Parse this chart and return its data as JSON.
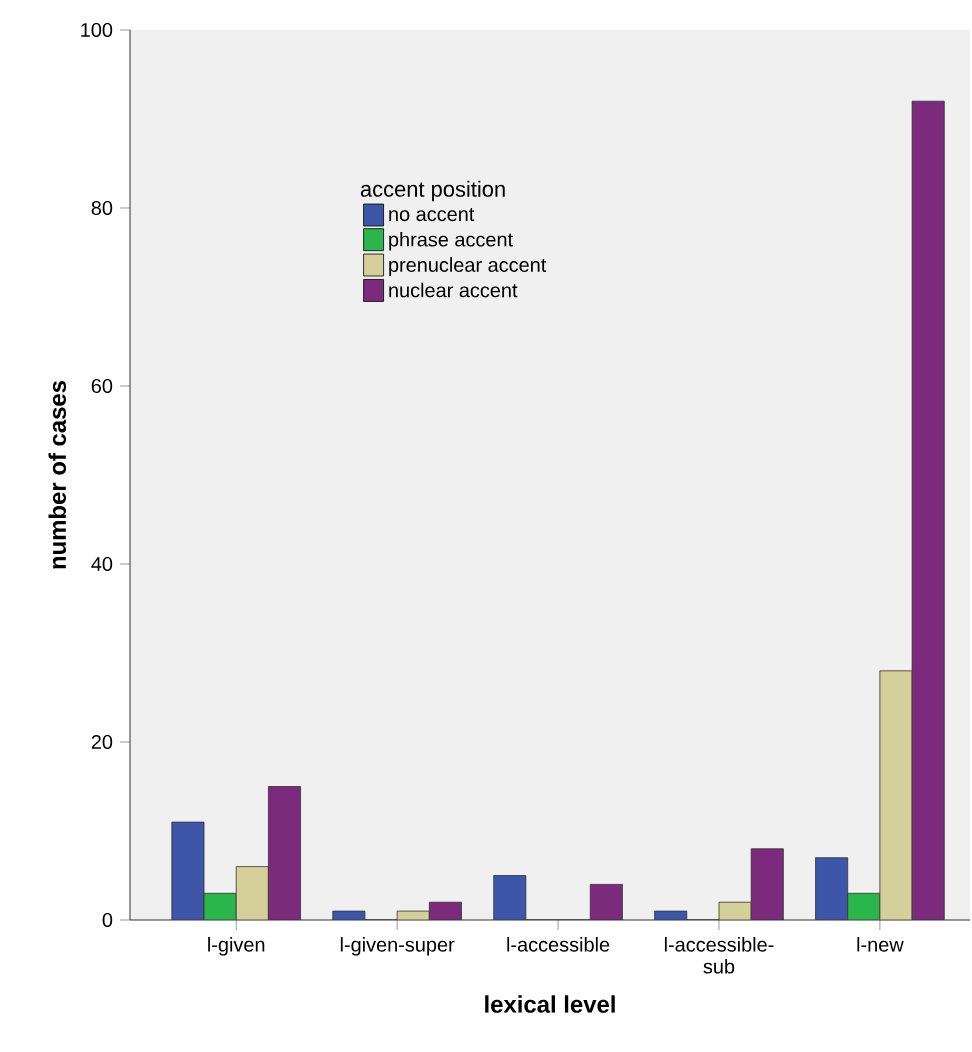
{
  "chart_data": {
    "type": "bar",
    "xlabel": "lexical level",
    "ylabel": "number of cases",
    "legend_title": "accent position",
    "categories": [
      "l-given",
      "l-given-super",
      "l-accessible",
      "l-accessible-sub",
      "l-new"
    ],
    "series": [
      {
        "name": "no accent",
        "color": "#3d56a8",
        "values": [
          11,
          1,
          5,
          1,
          7
        ]
      },
      {
        "name": "phrase accent",
        "color": "#2ab64a",
        "values": [
          3,
          0,
          0,
          0,
          3
        ]
      },
      {
        "name": "prenuclear accent",
        "color": "#d5cf9a",
        "values": [
          6,
          1,
          0,
          2,
          28
        ]
      },
      {
        "name": "nuclear accent",
        "color": "#7b2a7c",
        "values": [
          15,
          2,
          4,
          8,
          92
        ]
      }
    ],
    "ylim": [
      0,
      100
    ],
    "yticks": [
      0,
      20,
      40,
      60,
      80,
      100
    ],
    "grid": false,
    "legend": "top left"
  }
}
